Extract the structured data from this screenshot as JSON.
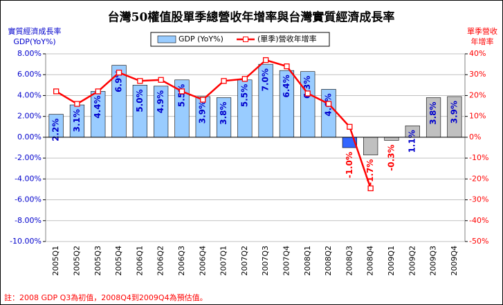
{
  "chart_data": {
    "type": "bar_line",
    "title": "台灣50權值股單季總營收年增率與台灣實質經濟成長率",
    "y_label": [
      "實質經濟成長率",
      "GDP(YoY%)"
    ],
    "y2_label": [
      "單季營收",
      "年增率"
    ],
    "footnote": "註：2008 GDP Q3為初值，2008Q4到2009Q4為預估值。",
    "categories": [
      "2005Q1",
      "2005Q2",
      "2005Q3",
      "2005Q4",
      "2006Q1",
      "2006Q2",
      "2006Q3",
      "2006Q4",
      "2007Q1",
      "2007Q2",
      "2007Q3",
      "2007Q4",
      "2008Q1",
      "2008Q2",
      "2008Q3",
      "2008Q4",
      "2009Q1",
      "2009Q2",
      "2009Q3",
      "2009Q4"
    ],
    "series": [
      {
        "name": "GDP (YoY%)",
        "color": "#99ccff",
        "bar_colors": [
          "#99ccff",
          "#99ccff",
          "#99ccff",
          "#99ccff",
          "#99ccff",
          "#99ccff",
          "#99ccff",
          "#99ccff",
          "#99ccff",
          "#99ccff",
          "#99ccff",
          "#99ccff",
          "#99ccff",
          "#99ccff",
          "#3366ff",
          "#c0c0c0",
          "#c0c0c0",
          "#c0c0c0",
          "#c0c0c0",
          "#c0c0c0"
        ],
        "values": [
          2.2,
          3.1,
          4.4,
          6.9,
          5.0,
          4.9,
          5.5,
          3.9,
          3.8,
          5.5,
          7.0,
          6.4,
          6.3,
          4.6,
          -1.0,
          -1.7,
          -0.3,
          1.1,
          3.8,
          3.9
        ],
        "value_labels": [
          "2.2%",
          "3.1%",
          "4.4%",
          "6.9%",
          "5.0%",
          "4.9%",
          "5.5%",
          "3.9%",
          "3.8%",
          "5.5%",
          "7.0%",
          "6.4%",
          "6.3%",
          "4.6%",
          "-1.0%",
          "-1.7%",
          "-0.3%",
          "1.1%",
          "3.8%",
          "3.9%"
        ]
      },
      {
        "name": "(單季)營收年增率",
        "color": "#ff0000",
        "axis": "y2",
        "values": [
          22,
          16,
          22,
          31,
          27,
          27.5,
          22,
          18,
          27,
          28,
          37,
          34,
          21,
          16,
          5,
          -24.5,
          null,
          null,
          null,
          null
        ]
      }
    ],
    "ylim": [
      -10,
      8
    ],
    "yticks": [
      {
        "value": 8,
        "label": "8.00%"
      },
      {
        "value": 6,
        "label": "6.00%"
      },
      {
        "value": 4,
        "label": "4.00%"
      },
      {
        "value": 2,
        "label": "2.00%"
      },
      {
        "value": 0,
        "label": "0.00%"
      },
      {
        "value": -2,
        "label": "-2.00%"
      },
      {
        "value": -4,
        "label": "-4.00%"
      },
      {
        "value": -6,
        "label": "-6.00%"
      },
      {
        "value": -8,
        "label": "-8.00%"
      },
      {
        "value": -10,
        "label": "-10.00%"
      }
    ],
    "y2lim": [
      -50,
      40
    ],
    "y2ticks": [
      {
        "value": 40,
        "label": "40%"
      },
      {
        "value": 30,
        "label": "30%"
      },
      {
        "value": 20,
        "label": "20%"
      },
      {
        "value": 10,
        "label": "10%"
      },
      {
        "value": 0,
        "label": "0%"
      },
      {
        "value": -10,
        "label": "-10%"
      },
      {
        "value": -20,
        "label": "-20%"
      },
      {
        "value": -30,
        "label": "-30%"
      },
      {
        "value": -40,
        "label": "-40%"
      },
      {
        "value": -50,
        "label": "-50%"
      }
    ],
    "grid": true
  }
}
